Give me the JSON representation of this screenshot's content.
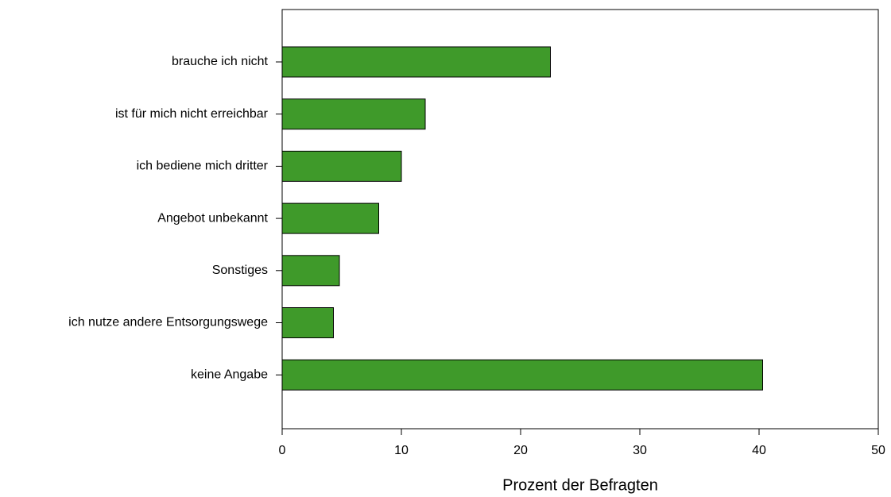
{
  "chart_data": {
    "type": "barh",
    "xlabel": "Prozent der Befragten",
    "categories": [
      "brauche ich nicht",
      "ist für mich nicht erreichbar",
      "ich bediene mich dritter",
      "Angebot unbekannt",
      "Sonstiges",
      "ich nutze andere Entsorgungswege",
      "keine Angabe"
    ],
    "values": [
      22.5,
      12,
      10,
      8.1,
      4.8,
      4.3,
      40.3
    ],
    "color": "#3f9a2a",
    "xlim": [
      0,
      50
    ],
    "xticks": [
      0,
      10,
      20,
      30,
      40,
      50
    ]
  }
}
